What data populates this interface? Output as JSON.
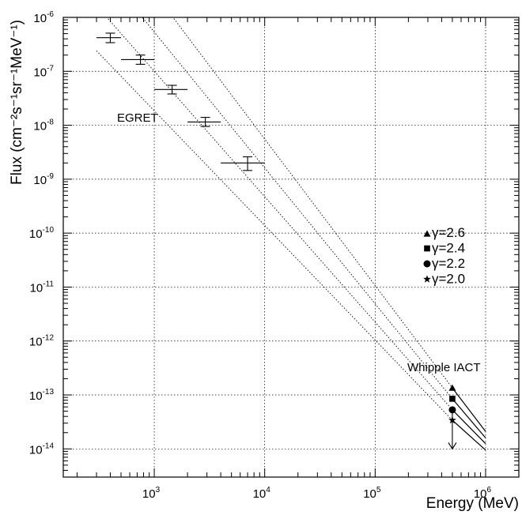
{
  "chart_data": {
    "type": "scatter",
    "x_scale": "log",
    "y_scale": "log",
    "xlim": [
      150,
      2000000
    ],
    "ylim": [
      3e-15,
      1e-06
    ],
    "grid": true,
    "xlabel": "Energy (MeV)",
    "ylabel": "Flux  (cm⁻²s⁻¹sr⁻¹MeV⁻¹)",
    "x_ticks": [
      {
        "label": "10",
        "exp": "3",
        "value": 1000
      },
      {
        "label": "10",
        "exp": "4",
        "value": 10000
      },
      {
        "label": "10",
        "exp": "5",
        "value": 100000
      },
      {
        "label": "10",
        "exp": "6",
        "value": 1000000
      }
    ],
    "y_ticks": [
      {
        "label": "10",
        "exp": "-6",
        "value": 1e-06
      },
      {
        "label": "10",
        "exp": "-7",
        "value": 1e-07
      },
      {
        "label": "10",
        "exp": "-8",
        "value": 1e-08
      },
      {
        "label": "10",
        "exp": "-9",
        "value": 1e-09
      },
      {
        "label": "10",
        "exp": "-10",
        "value": 1e-10
      },
      {
        "label": "10",
        "exp": "-11",
        "value": 1e-11
      },
      {
        "label": "10",
        "exp": "-12",
        "value": 1e-12
      },
      {
        "label": "10",
        "exp": "-13",
        "value": 1e-13
      },
      {
        "label": "10",
        "exp": "-14",
        "value": 1e-14
      }
    ],
    "egret_points": [
      {
        "x": 400,
        "x_lo": 300,
        "x_hi": 500,
        "y": 4.2e-07,
        "y_lo": 3.4e-07,
        "y_hi": 5.1e-07
      },
      {
        "x": 750,
        "x_lo": 500,
        "x_hi": 1000,
        "y": 1.65e-07,
        "y_lo": 1.35e-07,
        "y_hi": 2e-07
      },
      {
        "x": 1450,
        "x_lo": 1000,
        "x_hi": 2000,
        "y": 4.6e-08,
        "y_lo": 3.8e-08,
        "y_hi": 5.5e-08
      },
      {
        "x": 2900,
        "x_lo": 2000,
        "x_hi": 4000,
        "y": 1.15e-08,
        "y_lo": 9.5e-09,
        "y_hi": 1.4e-08
      },
      {
        "x": 7000,
        "x_lo": 4000,
        "x_hi": 10000,
        "y": 2e-09,
        "y_lo": 1.45e-09,
        "y_hi": 2.6e-09
      }
    ],
    "extrapolation_lines": [
      {
        "gamma": 2.0,
        "x": [
          300,
          500000
        ],
        "y": [
          2.4e-07,
          3.4e-14
        ]
      },
      {
        "gamma": 2.2,
        "x": [
          300,
          500000
        ],
        "y": [
          1.65e-06,
          5.3e-14
        ]
      },
      {
        "gamma": 2.4,
        "x": [
          300,
          500000
        ],
        "y": [
          1.11e-05,
          8.5e-14
        ]
      },
      {
        "gamma": 2.6,
        "x": [
          300,
          500000
        ],
        "y": [
          7.6e-05,
          1.35e-13
        ]
      }
    ],
    "iact_points": [
      {
        "gamma": 2.6,
        "marker": "triangle",
        "x": 500000,
        "y": 1.35e-13
      },
      {
        "gamma": 2.4,
        "marker": "square",
        "x": 500000,
        "y": 8.5e-14
      },
      {
        "gamma": 2.2,
        "marker": "circle",
        "x": 500000,
        "y": 5.3e-14
      },
      {
        "gamma": 2.0,
        "marker": "star",
        "x": 500000,
        "y": 3.4e-14
      }
    ],
    "iact_upper_limit": {
      "x": 500000,
      "y_from": 5.3e-14,
      "y_to": 1e-14
    },
    "iact_solid_lines": [
      {
        "x": [
          500000,
          1000000
        ],
        "y": [
          1.35e-13,
          2.1e-14
        ]
      },
      {
        "x": [
          500000,
          1000000
        ],
        "y": [
          8.5e-14,
          1.6e-14
        ]
      },
      {
        "x": [
          500000,
          1000000
        ],
        "y": [
          5.3e-14,
          1.25e-14
        ]
      },
      {
        "x": [
          500000,
          1000000
        ],
        "y": [
          3.4e-14,
          9.5e-15
        ]
      }
    ],
    "legend": [
      {
        "marker": "triangle",
        "symbol": "γ",
        "text": "=2.6"
      },
      {
        "marker": "square",
        "symbol": "γ",
        "text": "=2.4"
      },
      {
        "marker": "circle",
        "symbol": "γ",
        "text": "=2.2"
      },
      {
        "marker": "star",
        "symbol": "γ",
        "text": "=2.0"
      }
    ],
    "legend_position": "middle-right",
    "annotations": [
      {
        "id": "egret",
        "text": "EGRET"
      },
      {
        "id": "whipple",
        "text": "Whipple IACT"
      }
    ]
  }
}
